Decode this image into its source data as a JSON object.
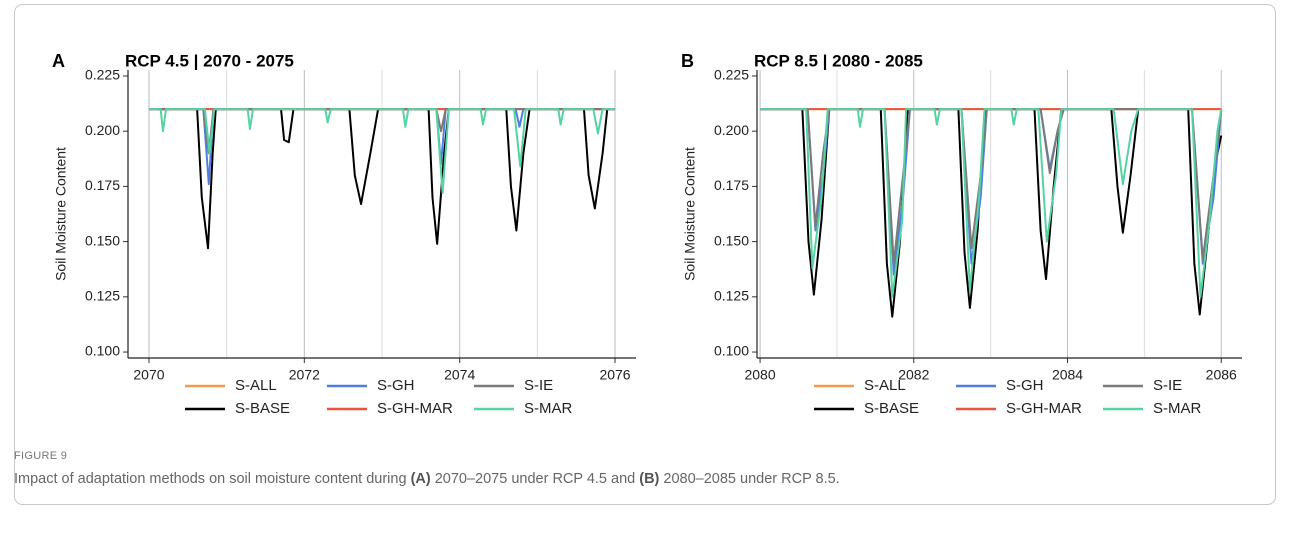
{
  "chart_data": [
    {
      "type": "line",
      "panel": "A",
      "title": "RCP 4.5 | 2070 - 2075",
      "y_label": "Soil Moisture Content",
      "xlim": [
        2069.73,
        2076.27
      ],
      "xticks": [
        2070,
        2072,
        2074,
        2076
      ],
      "minor_xticks": [
        2071,
        2073,
        2075
      ],
      "ylim": [
        0.0973,
        0.2277
      ],
      "yticks": [
        {
          "value": 0.1,
          "label": "0.100"
        },
        0.125,
        {
          "value": 0.15,
          "label": "0.150"
        },
        0.175,
        {
          "value": 0.2,
          "label": "0.200"
        },
        0.225
      ],
      "grid": "vertical",
      "series": [
        {
          "name": "S-ALL",
          "color": "#f39a4c",
          "x": [
            2070,
            2076
          ],
          "values": [
            0.21,
            0.21
          ]
        },
        {
          "name": "S-BASE",
          "color": "#000000",
          "x": [
            2070,
            2070.62,
            2070.68,
            2070.76,
            2070.82,
            2070.86,
            2071.7,
            2071.74,
            2071.8,
            2071.86,
            2072.58,
            2072.65,
            2072.73,
            2072.85,
            2072.95,
            2073.6,
            2073.65,
            2073.71,
            2073.8,
            2073.86,
            2074.6,
            2074.66,
            2074.73,
            2074.82,
            2074.9,
            2075.6,
            2075.66,
            2075.74,
            2075.84,
            2075.9,
            2076
          ],
          "values": [
            0.21,
            0.21,
            0.17,
            0.147,
            0.19,
            0.21,
            0.21,
            0.196,
            0.195,
            0.21,
            0.21,
            0.18,
            0.167,
            0.19,
            0.21,
            0.21,
            0.17,
            0.149,
            0.19,
            0.21,
            0.21,
            0.175,
            0.155,
            0.19,
            0.21,
            0.21,
            0.18,
            0.165,
            0.19,
            0.21,
            0.21
          ]
        },
        {
          "name": "S-GH",
          "color": "#4f7fdc",
          "x": [
            2070,
            2070.7,
            2070.77,
            2070.83,
            2073.7,
            2073.76,
            2073.82,
            2074.72,
            2074.77,
            2074.82,
            2076
          ],
          "values": [
            0.21,
            0.21,
            0.176,
            0.21,
            0.21,
            0.185,
            0.21,
            0.21,
            0.202,
            0.21,
            0.21
          ]
        },
        {
          "name": "S-GH-MAR",
          "color": "#e8543c",
          "x": [
            2070,
            2076
          ],
          "values": [
            0.21,
            0.21
          ]
        },
        {
          "name": "S-IE",
          "color": "#7a7a7a",
          "x": [
            2070,
            2070.7,
            2070.77,
            2070.83,
            2073.7,
            2073.76,
            2073.82,
            2076
          ],
          "values": [
            0.21,
            0.21,
            0.19,
            0.21,
            0.21,
            0.2,
            0.21,
            0.21
          ]
        },
        {
          "name": "S-MAR",
          "color": "#55d3a2",
          "x": [
            2070,
            2070.15,
            2070.18,
            2070.22,
            2070.72,
            2070.78,
            2070.84,
            2071.27,
            2071.3,
            2071.34,
            2072.27,
            2072.3,
            2072.34,
            2073.27,
            2073.3,
            2073.34,
            2073.7,
            2073.78,
            2073.86,
            2074.27,
            2074.3,
            2074.34,
            2074.7,
            2074.78,
            2074.85,
            2075.27,
            2075.3,
            2075.34,
            2075.72,
            2075.78,
            2075.84,
            2076
          ],
          "values": [
            0.21,
            0.21,
            0.2,
            0.21,
            0.21,
            0.19,
            0.21,
            0.21,
            0.201,
            0.21,
            0.21,
            0.204,
            0.21,
            0.21,
            0.202,
            0.21,
            0.21,
            0.172,
            0.21,
            0.21,
            0.203,
            0.21,
            0.21,
            0.184,
            0.21,
            0.21,
            0.203,
            0.21,
            0.21,
            0.199,
            0.21,
            0.21
          ]
        }
      ]
    },
    {
      "type": "line",
      "panel": "B",
      "title": "RCP 8.5 | 2080 - 2085",
      "y_label": "Soil Moisture Content",
      "xlim": [
        2079.96,
        2086.27
      ],
      "xticks": [
        2080,
        2082,
        2084,
        2086
      ],
      "minor_xticks": [
        2081,
        2083,
        2085
      ],
      "ylim": [
        0.0973,
        0.2277
      ],
      "yticks": [
        {
          "value": 0.1,
          "label": "0.100"
        },
        0.125,
        {
          "value": 0.15,
          "label": "0.150"
        },
        0.175,
        {
          "value": 0.2,
          "label": "0.200"
        },
        0.225
      ],
      "grid": "vertical",
      "series": [
        {
          "name": "S-ALL",
          "color": "#f39a4c",
          "x": [
            2080,
            2086
          ],
          "values": [
            0.21,
            0.21
          ]
        },
        {
          "name": "S-BASE",
          "color": "#000000",
          "x": [
            2080,
            2080.55,
            2080.63,
            2080.7,
            2080.8,
            2080.9,
            2081.57,
            2081.65,
            2081.72,
            2081.82,
            2081.92,
            2082.58,
            2082.66,
            2082.73,
            2082.83,
            2082.93,
            2083.57,
            2083.65,
            2083.72,
            2083.82,
            2083.92,
            2084.57,
            2084.65,
            2084.72,
            2084.82,
            2084.92,
            2085.57,
            2085.65,
            2085.72,
            2085.82,
            2085.92,
            2086
          ],
          "values": [
            0.21,
            0.21,
            0.15,
            0.126,
            0.16,
            0.21,
            0.21,
            0.14,
            0.116,
            0.15,
            0.21,
            0.21,
            0.145,
            0.12,
            0.155,
            0.21,
            0.21,
            0.155,
            0.133,
            0.175,
            0.21,
            0.21,
            0.175,
            0.154,
            0.18,
            0.21,
            0.21,
            0.14,
            0.117,
            0.15,
            0.185,
            0.198
          ]
        },
        {
          "name": "S-GH",
          "color": "#4f7fdc",
          "x": [
            2080,
            2080.62,
            2080.72,
            2080.82,
            2080.9,
            2081.62,
            2081.74,
            2081.86,
            2081.95,
            2082.62,
            2082.75,
            2082.87,
            2082.95,
            2083.65,
            2083.77,
            2083.87,
            2083.95,
            2085.62,
            2085.76,
            2085.9,
            2086
          ],
          "values": [
            0.21,
            0.21,
            0.155,
            0.18,
            0.21,
            0.21,
            0.135,
            0.17,
            0.21,
            0.21,
            0.14,
            0.17,
            0.21,
            0.21,
            0.183,
            0.2,
            0.21,
            0.21,
            0.14,
            0.17,
            0.21
          ]
        },
        {
          "name": "S-GH-MAR",
          "color": "#e8543c",
          "x": [
            2080,
            2086
          ],
          "values": [
            0.21,
            0.21
          ]
        },
        {
          "name": "S-IE",
          "color": "#7a7a7a",
          "x": [
            2080,
            2080.62,
            2080.72,
            2080.82,
            2080.9,
            2081.62,
            2081.74,
            2081.86,
            2081.95,
            2082.62,
            2082.75,
            2082.87,
            2082.95,
            2083.65,
            2083.77,
            2083.87,
            2083.95,
            2085.62,
            2085.76,
            2085.9,
            2086
          ],
          "values": [
            0.21,
            0.21,
            0.157,
            0.19,
            0.21,
            0.21,
            0.14,
            0.18,
            0.21,
            0.21,
            0.147,
            0.18,
            0.21,
            0.21,
            0.181,
            0.2,
            0.21,
            0.21,
            0.142,
            0.18,
            0.21
          ]
        },
        {
          "name": "S-MAR",
          "color": "#55d3a2",
          "x": [
            2080,
            2080.6,
            2080.68,
            2080.8,
            2080.88,
            2081.27,
            2081.3,
            2081.34,
            2081.62,
            2081.72,
            2081.85,
            2081.9,
            2082.27,
            2082.3,
            2082.34,
            2082.62,
            2082.73,
            2082.85,
            2082.92,
            2083.27,
            2083.3,
            2083.34,
            2083.62,
            2083.73,
            2083.85,
            2083.92,
            2084.6,
            2084.72,
            2084.83,
            2084.92,
            2085.62,
            2085.73,
            2085.85,
            2085.95,
            2086
          ],
          "values": [
            0.21,
            0.21,
            0.138,
            0.17,
            0.21,
            0.21,
            0.202,
            0.21,
            0.21,
            0.125,
            0.16,
            0.21,
            0.21,
            0.203,
            0.21,
            0.21,
            0.128,
            0.17,
            0.21,
            0.21,
            0.203,
            0.21,
            0.21,
            0.15,
            0.18,
            0.21,
            0.21,
            0.176,
            0.2,
            0.21,
            0.21,
            0.125,
            0.16,
            0.2,
            0.21
          ]
        }
      ]
    }
  ],
  "figure": {
    "label": "FIGURE 9",
    "caption": [
      "Impact of adaptation methods on soil moisture content during ",
      "(A)",
      " 2070–2075 under RCP 4.5 and ",
      "(B)",
      " 2080–2085 under RCP 8.5."
    ]
  }
}
